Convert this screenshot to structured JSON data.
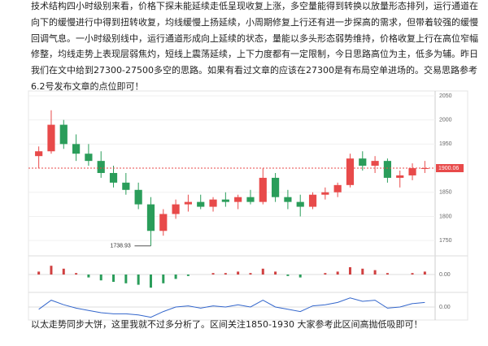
{
  "paragraphs": [
    "技术结构四小时级别来看，价格下探未能延续走低呈现收复上涨，多空量能得到转换以放量形态排列，运行通道在",
    "向下的缓慢进行中得到扭转收复，均线缓慢上扬延续，小周期修复上行还有进一步探高的需求，但带着较强的缓慢",
    "回调气息。一小时级别线中，运行通道形成向上延续的状态，量能以多头形态弱势维持，价格收复上行在高位窄幅",
    "修整，均线走势上表现层弱焦灼，短线上震荡延续，上下力度都有一定限制，今日思路高位为主，低多为辅。昨日",
    "我们在文中给到27300-27500多空的思路。如果有看过文章的应该在27300是有布局空单进场的。交易思路参考",
    "6.2号发布文章的点位即可！"
  ],
  "chart_data": {
    "type": "candlestick",
    "open": [
      1925,
      1935,
      1990,
      1950,
      1930,
      1915,
      1890,
      1870,
      1855,
      1825,
      1770,
      1805,
      1825,
      1830,
      1820,
      1835,
      1830,
      1840,
      1830,
      1880,
      1840,
      1830,
      1820,
      1845,
      1850,
      1865,
      1920,
      1905,
      1915,
      1880,
      1885,
      1900
    ],
    "high": [
      1945,
      2020,
      2000,
      1970,
      1950,
      1935,
      1905,
      1890,
      1870,
      1840,
      1815,
      1835,
      1845,
      1845,
      1840,
      1850,
      1845,
      1855,
      1900,
      1890,
      1855,
      1845,
      1850,
      1860,
      1870,
      1930,
      1935,
      1925,
      1920,
      1895,
      1910,
      1915
    ],
    "low": [
      1900,
      1930,
      1940,
      1915,
      1905,
      1880,
      1860,
      1845,
      1815,
      1738.93,
      1760,
      1795,
      1810,
      1815,
      1810,
      1820,
      1815,
      1825,
      1825,
      1830,
      1815,
      1800,
      1815,
      1835,
      1840,
      1860,
      1895,
      1890,
      1870,
      1860,
      1875,
      1890
    ],
    "close": [
      1935,
      1990,
      1950,
      1930,
      1915,
      1890,
      1870,
      1855,
      1825,
      1770,
      1805,
      1825,
      1830,
      1820,
      1835,
      1830,
      1840,
      1830,
      1880,
      1840,
      1830,
      1820,
      1845,
      1850,
      1865,
      1920,
      1905,
      1915,
      1880,
      1885,
      1900,
      1900.06
    ],
    "up_color": "#e84a4a",
    "down_color": "#2a9d5a",
    "ylim": [
      1725,
      2060
    ],
    "yticks": [
      2050,
      2000,
      1950,
      1850,
      1800,
      1750
    ],
    "last_price": 1900.06,
    "low_label": 1738.93,
    "grid": true,
    "macd": {
      "values": [
        2,
        6,
        4,
        1,
        -2,
        -4,
        -5,
        -6,
        -7,
        -9,
        -6,
        -3,
        -1,
        0,
        1,
        1,
        2,
        1,
        4,
        2,
        -1,
        -2,
        0,
        1,
        2,
        5,
        4,
        3,
        1,
        0,
        1,
        2
      ],
      "ylim": [
        -10,
        10
      ],
      "yticks": [
        {
          "value": 0,
          "label": "0.00"
        }
      ],
      "color": "#d04040",
      "neg_color": "#2a9d5a"
    },
    "oscillator": {
      "values": [
        40,
        80,
        60,
        45,
        35,
        25,
        20,
        20,
        15,
        5,
        30,
        50,
        55,
        45,
        55,
        50,
        60,
        50,
        80,
        50,
        40,
        30,
        55,
        60,
        70,
        90,
        75,
        80,
        45,
        50,
        65,
        70
      ],
      "ylim": [
        0,
        100
      ],
      "yticks": [
        {
          "value": 50,
          "label": "0.00"
        }
      ],
      "color": "#3366cc"
    }
  },
  "footer": "以太走势同步大饼，这里我就不过多分析了。区间关注1850-1930 大家参考此区间高抛低吸即可！"
}
